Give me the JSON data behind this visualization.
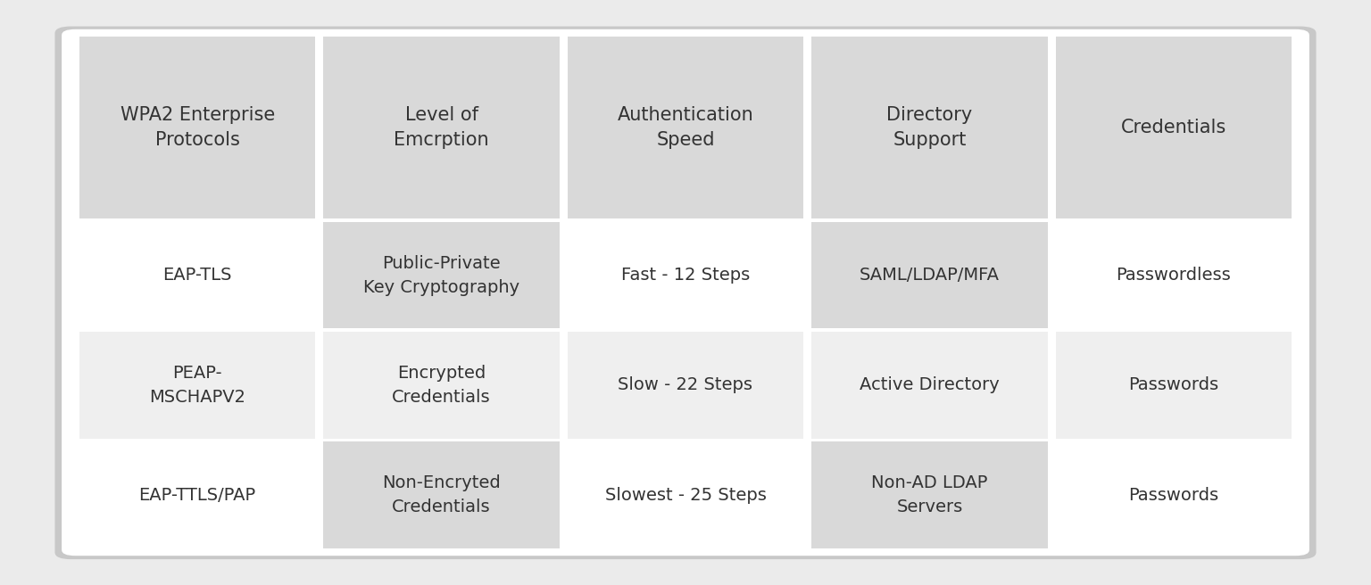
{
  "figsize": [
    15.36,
    6.56
  ],
  "dpi": 100,
  "outer_bg": "#ebebeb",
  "card_bg": "#ffffff",
  "header_bg": "#d9d9d9",
  "cell_bg_white": "#ffffff",
  "cell_bg_gray": "#efefef",
  "cell_bg_col1_even": "#efefef",
  "cell_bg_col1_odd": "#ffffff",
  "gap_color": "#e0e0e0",
  "text_color": "#333333",
  "header_fontsize": 15,
  "cell_fontsize": 14,
  "columns": [
    "WPA2 Enterprise\nProtocols",
    "Level of\nEmcrption",
    "Authentication\nSpeed",
    "Directory\nSupport",
    "Credentials"
  ],
  "rows": [
    [
      "EAP-TLS",
      "Public-Private\nKey Cryptography",
      "Fast - 12 Steps",
      "SAML/LDAP/MFA",
      "Passwordless"
    ],
    [
      "PEAP-\nMSCHAPV2",
      "Encrypted\nCredentials",
      "Slow - 22 Steps",
      "Active Directory",
      "Passwords"
    ],
    [
      "EAP-TTLS/PAP",
      "Non-Encryted\nCredentials",
      "Slowest - 25 Steps",
      "Non-AD LDAP\nServers",
      "Passwords"
    ]
  ],
  "row_cell_bgs": [
    [
      "#ffffff",
      "#d9d9d9",
      "#ffffff",
      "#d9d9d9",
      "#ffffff"
    ],
    [
      "#efefef",
      "#efefef",
      "#efefef",
      "#efefef",
      "#efefef"
    ],
    [
      "#ffffff",
      "#d9d9d9",
      "#ffffff",
      "#d9d9d9",
      "#ffffff"
    ]
  ],
  "header_fontweight": "normal",
  "col0_fontweight": "normal"
}
